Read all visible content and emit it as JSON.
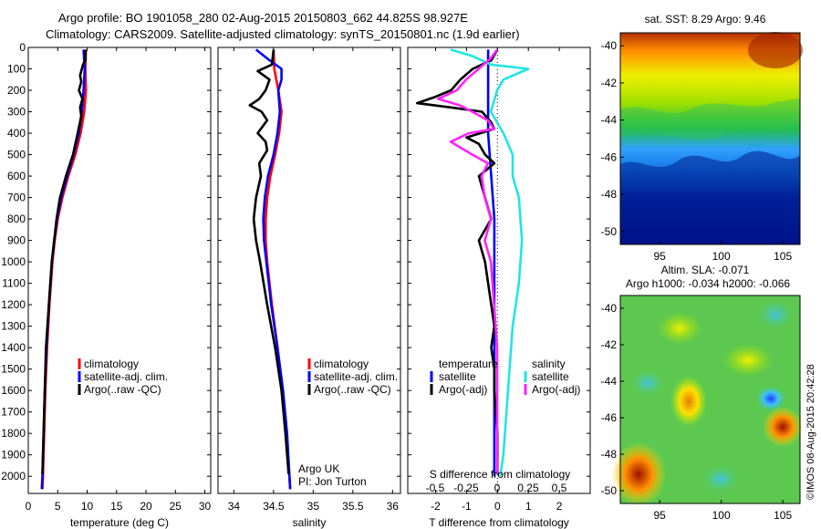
{
  "header": {
    "line1": "Argo profile: BO 1901058_280 02-Aug-2015 20150803_662 44.825S 98.927E",
    "line2": "Climatology: CARS2009. Satellite-adjusted climatology: synTS_20150801.nc (1.9d earlier)"
  },
  "colors": {
    "climatology": "#ff0000",
    "satellite": "#0000ff",
    "argo": "#000000",
    "sal_satellite": "#22e5e5",
    "sal_argo": "#ff22ff"
  },
  "chart_data": [
    {
      "type": "line",
      "name": "temperature-profile",
      "xlabel": "temperature (deg C)",
      "xlim": [
        0,
        31
      ],
      "xticks": [
        "0",
        "5",
        "10",
        "15",
        "20",
        "25",
        "30"
      ],
      "ylim": [
        2080,
        0
      ],
      "yticks": [
        "0",
        "100",
        "200",
        "300",
        "400",
        "500",
        "600",
        "700",
        "800",
        "900",
        "1000",
        "1100",
        "1200",
        "1300",
        "1400",
        "1500",
        "1600",
        "1700",
        "1800",
        "1900",
        "2000"
      ],
      "legend": [
        "climatology",
        "satellite-adj. clim.",
        "Argo(..raw -QC)"
      ],
      "legend_placement": "lower-right",
      "series": [
        {
          "name": "climatology",
          "depth": [
            10,
            100,
            200,
            300,
            400,
            500,
            600,
            700,
            800,
            900,
            1000,
            1200,
            1400,
            1600,
            1800,
            2000,
            2060
          ],
          "values": [
            9.8,
            9.7,
            9.8,
            9.5,
            8.9,
            8.0,
            6.8,
            5.8,
            5.0,
            4.5,
            4.1,
            3.6,
            3.2,
            2.9,
            2.7,
            2.5,
            2.4
          ]
        },
        {
          "name": "satellite-adj. clim.",
          "depth": [
            10,
            60,
            100,
            200,
            300,
            400,
            500,
            600,
            700,
            800,
            900,
            1000,
            1200,
            1400,
            1600,
            1800,
            2000,
            2060
          ],
          "values": [
            9.4,
            9.5,
            9.6,
            9.4,
            9.1,
            8.6,
            7.7,
            6.6,
            5.6,
            4.9,
            4.4,
            4.0,
            3.5,
            3.1,
            2.8,
            2.6,
            2.4,
            2.3
          ]
        },
        {
          "name": "Argo(..raw -QC)",
          "depth": [
            10,
            60,
            80,
            130,
            160,
            200,
            240,
            280,
            320,
            400,
            500,
            600,
            700,
            800,
            900,
            1000,
            1200,
            1400,
            1600,
            1800,
            1990
          ],
          "values": [
            9.7,
            9.7,
            9.3,
            8.8,
            9.0,
            8.6,
            9.2,
            8.8,
            9.0,
            8.4,
            7.6,
            6.4,
            5.4,
            4.8,
            4.4,
            4.0,
            3.5,
            3.0,
            2.8,
            2.6,
            2.4
          ]
        }
      ]
    },
    {
      "type": "line",
      "name": "salinity-profile",
      "xlabel": "salinity",
      "xlim": [
        33.8,
        36.1
      ],
      "xticks": [
        "34",
        "34.5",
        "35",
        "35.5",
        "36"
      ],
      "ylim": [
        2080,
        0
      ],
      "legend": [
        "climatology",
        "satellite-adj. clim.",
        "Argo(..raw -QC)"
      ],
      "legend_placement": "lower-right",
      "annotation": [
        "Argo UK",
        "PI: Jon Turton"
      ],
      "series": [
        {
          "name": "climatology",
          "depth": [
            10,
            100,
            200,
            300,
            400,
            500,
            600,
            700,
            800,
            900,
            1000,
            1200,
            1400,
            1600,
            1800,
            2000,
            2060
          ],
          "values": [
            34.5,
            34.51,
            34.56,
            34.6,
            34.57,
            34.52,
            34.46,
            34.42,
            34.4,
            34.4,
            34.42,
            34.48,
            34.55,
            34.61,
            34.66,
            34.7,
            34.71
          ]
        },
        {
          "name": "satellite-adj. clim.",
          "depth": [
            10,
            60,
            100,
            150,
            200,
            300,
            400,
            500,
            600,
            700,
            800,
            900,
            1000,
            1200,
            1400,
            1600,
            1800,
            2000,
            2060
          ],
          "values": [
            34.28,
            34.45,
            34.6,
            34.6,
            34.56,
            34.58,
            34.55,
            34.5,
            34.43,
            34.39,
            34.37,
            34.38,
            34.41,
            34.47,
            34.55,
            34.62,
            34.67,
            34.7,
            34.71
          ]
        },
        {
          "name": "Argo(..raw -QC)",
          "depth": [
            10,
            80,
            110,
            150,
            200,
            240,
            270,
            300,
            340,
            400,
            440,
            480,
            540,
            600,
            700,
            800,
            900,
            1000,
            1200,
            1400,
            1600,
            1800,
            1990
          ],
          "values": [
            34.5,
            34.48,
            34.3,
            34.45,
            34.4,
            34.32,
            34.2,
            34.35,
            34.42,
            34.3,
            34.4,
            34.42,
            34.32,
            34.34,
            34.28,
            34.25,
            34.28,
            34.33,
            34.42,
            34.52,
            34.6,
            34.65,
            34.69
          ]
        }
      ]
    },
    {
      "type": "line",
      "name": "difference-profile",
      "xlabel": "T difference from climatology",
      "xlim": [
        -2.9,
        3.0
      ],
      "xticks": [
        "-2",
        "-1",
        "0",
        "1",
        "2"
      ],
      "x2label": "S difference from climatology",
      "x2ticks": [
        "-0.5",
        "-0.25",
        "0",
        "0.25",
        "0.5"
      ],
      "ylim": [
        2080,
        0
      ],
      "legend": [
        "temperature",
        "satellite",
        "Argo(-adj)",
        "salinity",
        "satellite",
        "Argo(-adj)"
      ],
      "legend_placement": "lower-center",
      "series": [
        {
          "name": "temperature satellite",
          "depth": [
            10,
            200,
            400,
            600,
            800,
            1000,
            1200,
            1400,
            1600,
            1800,
            2000
          ],
          "values": [
            -0.3,
            -0.3,
            -0.3,
            -0.2,
            -0.1,
            -0.1,
            -0.1,
            -0.1,
            -0.1,
            -0.1,
            -0.1
          ]
        },
        {
          "name": "temperature Argo(-adj)",
          "depth": [
            10,
            60,
            100,
            150,
            200,
            230,
            260,
            280,
            300,
            350,
            380,
            420,
            450,
            500,
            540,
            600,
            700,
            800,
            900,
            1000,
            1100,
            1200,
            1300,
            1400,
            1500,
            1600,
            1800,
            1990
          ],
          "values": [
            0.0,
            -0.2,
            -0.8,
            -1.2,
            -1.5,
            -2.0,
            -2.6,
            -1.5,
            -0.5,
            -0.2,
            -0.1,
            -1.0,
            -0.6,
            -0.4,
            -0.1,
            -0.6,
            -0.4,
            -0.2,
            -0.6,
            -0.4,
            -0.3,
            -0.2,
            -0.1,
            -0.2,
            -0.1,
            -0.1,
            0.0,
            0.0
          ]
        },
        {
          "name": "salinity satellite",
          "depth": [
            10,
            40,
            80,
            100,
            150,
            200,
            300,
            400,
            500,
            600,
            700,
            900,
            1100,
            1300,
            1500,
            1700,
            1900,
            2000
          ],
          "values": [
            -1.5,
            -0.8,
            -0.2,
            1.0,
            0.2,
            0.0,
            -0.2,
            0.2,
            0.5,
            0.5,
            0.7,
            0.8,
            0.7,
            0.5,
            0.4,
            0.3,
            0.2,
            0.1
          ]
        },
        {
          "name": "salinity Argo(-adj)",
          "depth": [
            10,
            50,
            100,
            150,
            200,
            240,
            270,
            300,
            340,
            380,
            400,
            440,
            500,
            540,
            600,
            700,
            800,
            900,
            1000,
            1200,
            1400,
            1600,
            1800,
            1990
          ],
          "values": [
            0.0,
            -0.2,
            -0.6,
            -1.0,
            -1.3,
            -1.9,
            -1.2,
            -0.8,
            -0.3,
            -0.1,
            -0.9,
            -1.5,
            -0.8,
            -0.3,
            -0.5,
            -0.4,
            -0.2,
            -0.4,
            -0.2,
            -0.1,
            0.0,
            0.0,
            0.0,
            0.0
          ]
        }
      ]
    },
    {
      "type": "heatmap",
      "name": "sst-map",
      "title": "sat. SST: 8.29 Argo: 9.46",
      "xticks": [
        "95",
        "100",
        "105"
      ],
      "yticks": [
        "-40",
        "-42",
        "-44",
        "-46",
        "-48",
        "-50"
      ],
      "xlim": [
        91.8,
        106.4
      ],
      "ylim": [
        -50.7,
        -39.3
      ]
    },
    {
      "type": "heatmap",
      "name": "sla-map",
      "title": "Altim. SLA: -0.071",
      "subtitle": "Argo h1000: -0.034 h2000: -0.066",
      "xticks": [
        "95",
        "100",
        "105"
      ],
      "yticks": [
        "-40",
        "-42",
        "-44",
        "-46",
        "-48",
        "-50"
      ],
      "xlim": [
        91.8,
        106.4
      ],
      "ylim": [
        -50.7,
        -39.3
      ]
    }
  ],
  "footer": {
    "stamp": "©IMOS 08-Aug-2015 20:42:28"
  }
}
